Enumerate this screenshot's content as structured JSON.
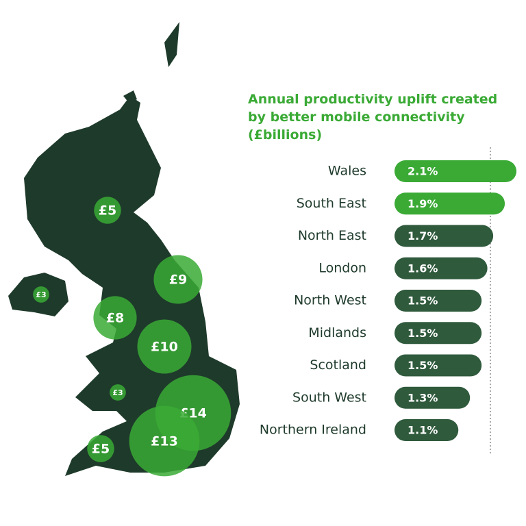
{
  "chart_data": [
    {
      "type": "bubble",
      "values": [
        5,
        9,
        8,
        10,
        3,
        3,
        14,
        13,
        5
      ],
      "value_labels": [
        "£5",
        "£9",
        "£8",
        "£10",
        "£3",
        "£3",
        "£14",
        "£13",
        "£5"
      ],
      "color": "#3aaa35"
    },
    {
      "type": "bar",
      "title": "Annual productivity uplift created by better mobile connectivity (£billions)",
      "categories": [
        "Wales",
        "South East",
        "North East",
        "London",
        "North West",
        "Midlands",
        "Scotland",
        "South West",
        "Northern Ireland"
      ],
      "values": [
        2.1,
        1.9,
        1.7,
        1.6,
        1.5,
        1.5,
        1.5,
        1.3,
        1.1
      ],
      "value_labels": [
        "2.1%",
        "1.9%",
        "1.7%",
        "1.6%",
        "1.5%",
        "1.5%",
        "1.5%",
        "1.3%",
        "1.1%"
      ],
      "colors": [
        "#3aaa35",
        "#3aaa35",
        "#2f5a3c",
        "#2f5a3c",
        "#2f5a3c",
        "#2f5a3c",
        "#2f5a3c",
        "#2f5a3c",
        "#2f5a3c"
      ],
      "xlim": [
        0,
        2.3
      ]
    }
  ]
}
